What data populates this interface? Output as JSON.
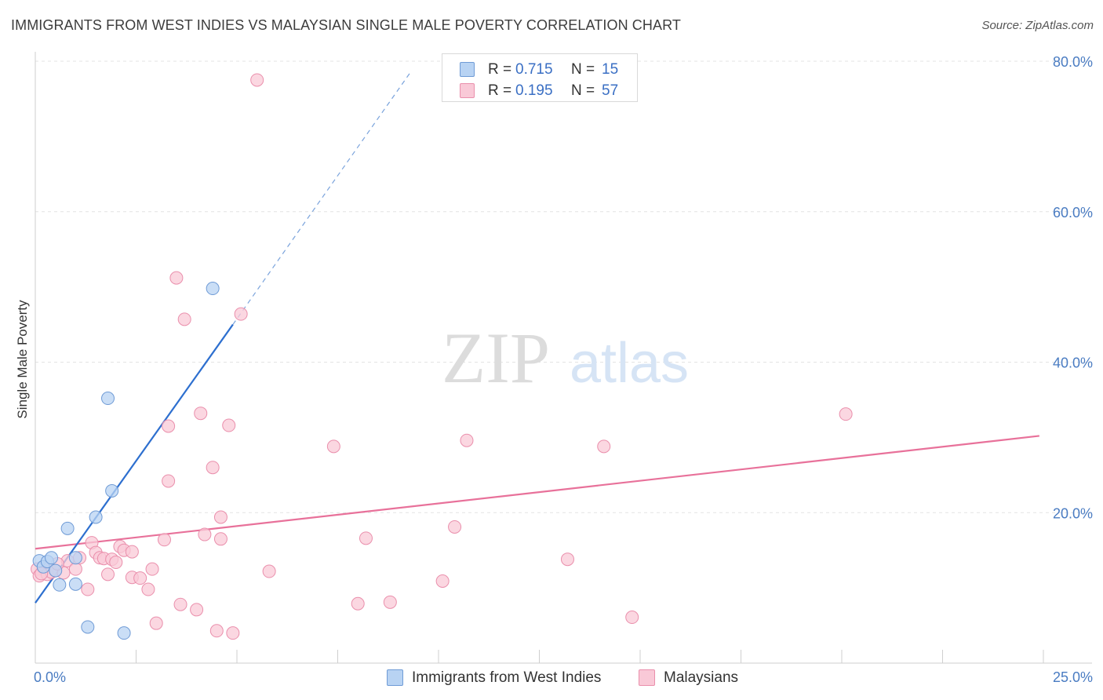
{
  "header": {
    "title": "IMMIGRANTS FROM WEST INDIES VS MALAYSIAN SINGLE MALE POVERTY CORRELATION CHART",
    "source": "Source: ZipAtlas.com"
  },
  "legend_top": {
    "rows": [
      {
        "r_label": "R = ",
        "r_value": "0.715",
        "n_label": "N = ",
        "n_value": "15"
      },
      {
        "r_label": "R = ",
        "r_value": "0.195",
        "n_label": "N = ",
        "n_value": "57"
      }
    ]
  },
  "legend_bottom": {
    "items": [
      {
        "label": "Immigrants from West Indies"
      },
      {
        "label": "Malaysians"
      }
    ]
  },
  "watermark": {
    "zip": "ZIP",
    "atlas": "atlas"
  },
  "colors": {
    "blue_fill": "#b8d3f3",
    "blue_stroke": "#6f9bd6",
    "blue_line": "#2d6fcf",
    "pink_fill": "#f9c9d7",
    "pink_stroke": "#ea8fac",
    "pink_line": "#e8719a",
    "tick_text": "#4a7cc2",
    "grid": "#e3e3e3"
  },
  "chart_data": {
    "type": "scatter",
    "title": "IMMIGRANTS FROM WEST INDIES VS MALAYSIAN SINGLE MALE POVERTY CORRELATION CHART",
    "xlabel": "",
    "ylabel": "Single Male Poverty",
    "xlim": [
      0,
      25
    ],
    "ylim": [
      0,
      80
    ],
    "x_tick_labels": [
      "0.0%",
      "25.0%"
    ],
    "y_ticks": [
      20,
      40,
      60,
      80
    ],
    "y_tick_labels": [
      "20.0%",
      "40.0%",
      "60.0%",
      "80.0%"
    ],
    "grid": true,
    "series": [
      {
        "name": "Immigrants from West Indies",
        "color": "blue",
        "R": 0.715,
        "N": 15,
        "points": [
          [
            0.1,
            13.6
          ],
          [
            0.2,
            12.8
          ],
          [
            0.3,
            13.5
          ],
          [
            0.4,
            14.0
          ],
          [
            0.5,
            12.3
          ],
          [
            0.6,
            10.4
          ],
          [
            0.8,
            17.9
          ],
          [
            1.0,
            10.5
          ],
          [
            1.0,
            14.0
          ],
          [
            1.3,
            4.8
          ],
          [
            1.5,
            19.4
          ],
          [
            1.8,
            35.2
          ],
          [
            1.9,
            22.9
          ],
          [
            2.2,
            4.0
          ],
          [
            4.4,
            49.8
          ]
        ],
        "trend": {
          "x0": 0.0,
          "y0": 8.0,
          "x1": 4.9,
          "y1": 45.0,
          "dash_x1": 9.3,
          "dash_y1": 78.5
        }
      },
      {
        "name": "Malaysians",
        "color": "pink",
        "R": 0.195,
        "N": 57,
        "points": [
          [
            0.05,
            12.5
          ],
          [
            0.1,
            11.6
          ],
          [
            0.2,
            12.7
          ],
          [
            0.3,
            11.8
          ],
          [
            0.4,
            12.1
          ],
          [
            0.5,
            12.3
          ],
          [
            0.7,
            12.0
          ],
          [
            0.8,
            13.6
          ],
          [
            1.0,
            12.5
          ],
          [
            1.1,
            14.0
          ],
          [
            1.3,
            9.8
          ],
          [
            1.4,
            16.0
          ],
          [
            1.5,
            14.7
          ],
          [
            1.6,
            14.0
          ],
          [
            1.7,
            13.9
          ],
          [
            1.8,
            11.8
          ],
          [
            1.9,
            13.8
          ],
          [
            2.0,
            13.4
          ],
          [
            2.1,
            15.5
          ],
          [
            2.2,
            15.0
          ],
          [
            2.4,
            14.8
          ],
          [
            2.4,
            11.4
          ],
          [
            2.6,
            11.3
          ],
          [
            2.8,
            9.8
          ],
          [
            2.9,
            12.5
          ],
          [
            3.0,
            5.3
          ],
          [
            3.2,
            16.4
          ],
          [
            3.3,
            31.5
          ],
          [
            3.3,
            24.2
          ],
          [
            3.5,
            51.2
          ],
          [
            3.6,
            7.8
          ],
          [
            3.7,
            45.7
          ],
          [
            4.0,
            7.1
          ],
          [
            4.1,
            33.2
          ],
          [
            4.2,
            17.1
          ],
          [
            4.4,
            26.0
          ],
          [
            4.5,
            4.3
          ],
          [
            4.6,
            19.4
          ],
          [
            4.6,
            16.5
          ],
          [
            4.8,
            31.6
          ],
          [
            4.9,
            4.0
          ],
          [
            5.1,
            46.4
          ],
          [
            5.5,
            77.5
          ],
          [
            5.8,
            12.2
          ],
          [
            7.4,
            28.8
          ],
          [
            8.0,
            7.9
          ],
          [
            8.2,
            16.6
          ],
          [
            8.8,
            8.1
          ],
          [
            10.1,
            10.9
          ],
          [
            10.4,
            18.1
          ],
          [
            10.7,
            29.6
          ],
          [
            13.2,
            13.8
          ],
          [
            14.1,
            28.8
          ],
          [
            14.8,
            6.1
          ],
          [
            20.1,
            33.1
          ],
          [
            0.15,
            11.9
          ],
          [
            0.55,
            13.2
          ]
        ],
        "trend": {
          "x0": 0.0,
          "y0": 15.2,
          "x1": 24.9,
          "y1": 30.2
        }
      }
    ]
  }
}
